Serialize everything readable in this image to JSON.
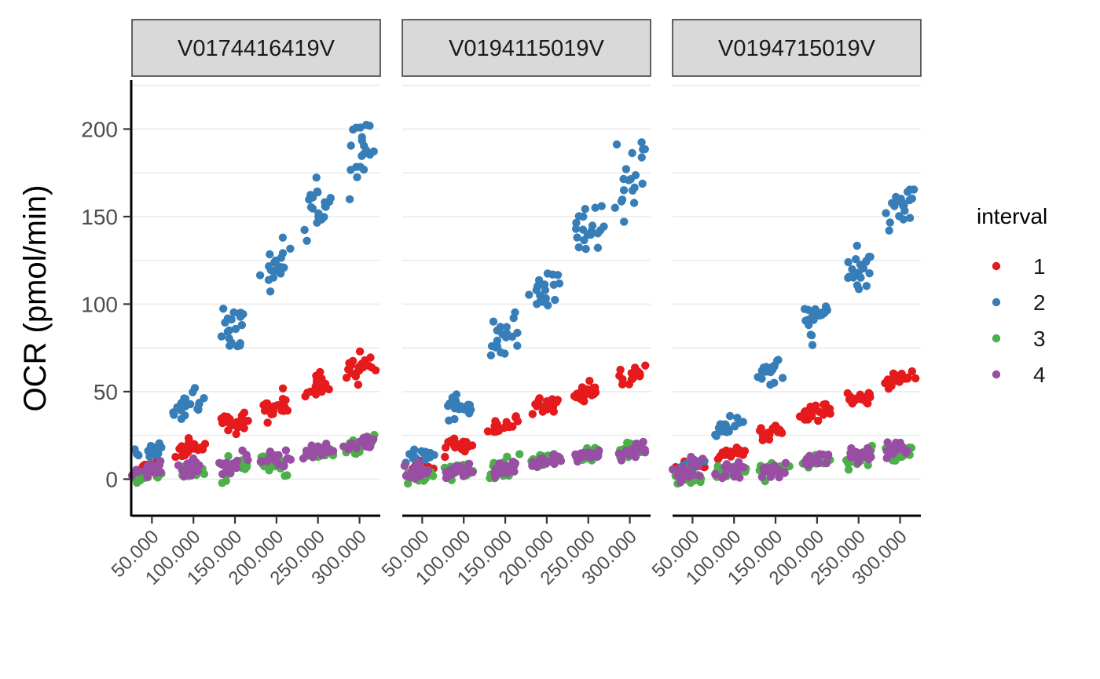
{
  "chart_data": {
    "type": "scatter",
    "ylabel": "OCR (pmol/min)",
    "xlabel": "",
    "ylim": [
      -20,
      228
    ],
    "xlim": [
      26000,
      325000
    ],
    "yticks": [
      0,
      50,
      100,
      150,
      200
    ],
    "ytick_labels": [
      "0",
      "50",
      "100",
      "150",
      "200"
    ],
    "xticks": [
      50000,
      100000,
      150000,
      200000,
      250000,
      300000
    ],
    "xtick_labels": [
      "50.000",
      "100.000",
      "150.000",
      "200.000",
      "250.000",
      "300.000"
    ],
    "grid": true,
    "legend": {
      "title": "interval",
      "position": "right",
      "entries": [
        {
          "label": "1",
          "color": "#e41a1c"
        },
        {
          "label": "2",
          "color": "#377eb8"
        },
        {
          "label": "3",
          "color": "#4daf4a"
        },
        {
          "label": "4",
          "color": "#984ea3"
        }
      ]
    },
    "panels": [
      {
        "title": "V0174416419V",
        "series": [
          {
            "name": "1",
            "color": "#e41a1c",
            "centers": [
              [
                45000,
                5
              ],
              [
                95000,
                18
              ],
              [
                148000,
                32
              ],
              [
                198000,
                42
              ],
              [
                250000,
                53
              ],
              [
                300000,
                63
              ]
            ],
            "spread": [
              5,
              4,
              5,
              6,
              6,
              7
            ]
          },
          {
            "name": "2",
            "color": "#377eb8",
            "centers": [
              [
                45000,
                15
              ],
              [
                95000,
                45
              ],
              [
                148000,
                88
              ],
              [
                198000,
                120
              ],
              [
                250000,
                155
              ],
              [
                300000,
                190
              ]
            ],
            "spread": [
              4,
              7,
              10,
              12,
              14,
              18
            ]
          },
          {
            "name": "3",
            "color": "#4daf4a",
            "centers": [
              [
                45000,
                3
              ],
              [
                95000,
                4
              ],
              [
                148000,
                6
              ],
              [
                198000,
                9
              ],
              [
                250000,
                15
              ],
              [
                300000,
                19
              ]
            ],
            "spread": [
              4,
              4,
              5,
              6,
              3,
              4
            ]
          },
          {
            "name": "4",
            "color": "#984ea3",
            "centers": [
              [
                45000,
                5
              ],
              [
                95000,
                7
              ],
              [
                148000,
                9
              ],
              [
                198000,
                11
              ],
              [
                250000,
                16
              ],
              [
                300000,
                20
              ]
            ],
            "spread": [
              4,
              4,
              5,
              4,
              3,
              4
            ]
          }
        ]
      },
      {
        "title": "V0194115019V",
        "series": [
          {
            "name": "1",
            "color": "#e41a1c",
            "centers": [
              [
                45000,
                6
              ],
              [
                95000,
                18
              ],
              [
                148000,
                30
              ],
              [
                198000,
                41
              ],
              [
                250000,
                50
              ],
              [
                300000,
                60
              ]
            ],
            "spread": [
              3,
              4,
              5,
              4,
              4,
              5
            ]
          },
          {
            "name": "2",
            "color": "#377eb8",
            "centers": [
              [
                45000,
                14
              ],
              [
                95000,
                42
              ],
              [
                148000,
                80
              ],
              [
                198000,
                108
              ],
              [
                250000,
                142
              ],
              [
                300000,
                172
              ]
            ],
            "spread": [
              4,
              6,
              10,
              11,
              9,
              18
            ]
          },
          {
            "name": "3",
            "color": "#4daf4a",
            "centers": [
              [
                45000,
                2
              ],
              [
                95000,
                5
              ],
              [
                148000,
                7
              ],
              [
                198000,
                11
              ],
              [
                250000,
                14
              ],
              [
                300000,
                17
              ]
            ],
            "spread": [
              4,
              4,
              5,
              3,
              3,
              3
            ]
          },
          {
            "name": "4",
            "color": "#984ea3",
            "centers": [
              [
                45000,
                5
              ],
              [
                95000,
                6
              ],
              [
                148000,
                6
              ],
              [
                198000,
                10
              ],
              [
                250000,
                14
              ],
              [
                300000,
                16
              ]
            ],
            "spread": [
              4,
              4,
              4,
              3,
              3,
              4
            ]
          }
        ]
      },
      {
        "title": "V0194715019V",
        "series": [
          {
            "name": "1",
            "color": "#e41a1c",
            "centers": [
              [
                45000,
                7
              ],
              [
                95000,
                15
              ],
              [
                148000,
                27
              ],
              [
                198000,
                38
              ],
              [
                250000,
                46
              ],
              [
                300000,
                57
              ]
            ],
            "spread": [
              3,
              3,
              4,
              4,
              3,
              4
            ]
          },
          {
            "name": "2",
            "color": "#377eb8",
            "centers": [
              [
                45000,
                8
              ],
              [
                95000,
                31
              ],
              [
                148000,
                62
              ],
              [
                198000,
                90
              ],
              [
                250000,
                118
              ],
              [
                300000,
                158
              ]
            ],
            "spread": [
              3,
              4,
              6,
              8,
              9,
              9
            ]
          },
          {
            "name": "3",
            "color": "#4daf4a",
            "centers": [
              [
                45000,
                1
              ],
              [
                95000,
                4
              ],
              [
                148000,
                6
              ],
              [
                198000,
                10
              ],
              [
                250000,
                12
              ],
              [
                300000,
                17
              ]
            ],
            "spread": [
              4,
              3,
              4,
              3,
              5,
              4
            ]
          },
          {
            "name": "4",
            "color": "#984ea3",
            "centers": [
              [
                45000,
                5
              ],
              [
                95000,
                5
              ],
              [
                148000,
                6
              ],
              [
                198000,
                11
              ],
              [
                250000,
                14
              ],
              [
                300000,
                18
              ]
            ],
            "spread": [
              5,
              4,
              4,
              3,
              4,
              4
            ]
          }
        ]
      }
    ]
  }
}
